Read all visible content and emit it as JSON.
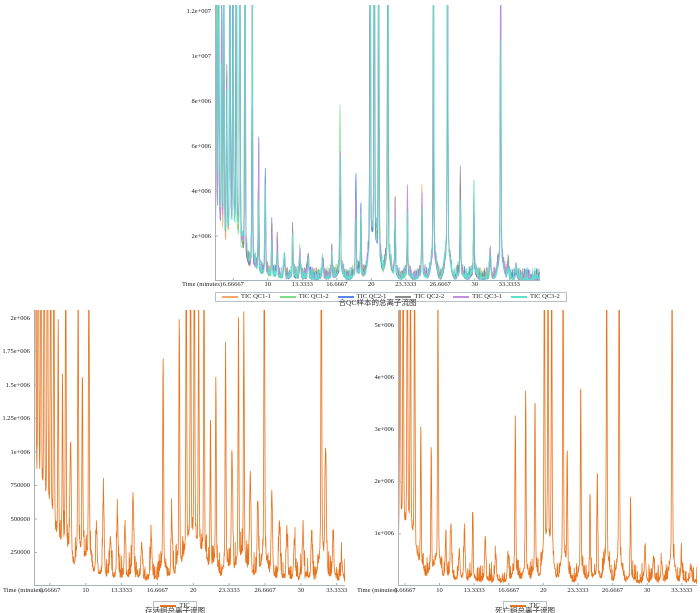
{
  "figure": {
    "background": "#ffffff",
    "description": "Three GC-MS total ion chromatogram (TIC) panels"
  },
  "chart_data": [
    {
      "id": "pooled-qc-tic",
      "type": "line",
      "title": "合QC样本的总离子流图",
      "x_axis_label": "Time (minutes)",
      "x_ticks": [
        "6.66667",
        "10",
        "13.3333",
        "16.6667",
        "20",
        "23.3333",
        "26.6667",
        "30",
        "33.3333"
      ],
      "x_tick_values": [
        6.66667,
        10,
        13.3333,
        16.6667,
        20,
        23.3333,
        26.6667,
        30,
        33.3333
      ],
      "y_ticks": [
        {
          "label": "2e+006",
          "value": 2000000
        },
        {
          "label": "4e+006",
          "value": 4000000
        },
        {
          "label": "6e+006",
          "value": 6000000
        },
        {
          "label": "8e+006",
          "value": 8000000
        },
        {
          "label": "1e+007",
          "value": 10000000
        },
        {
          "label": "1.2e+007",
          "value": 12000000
        }
      ],
      "xlim": [
        4.9,
        36.3
      ],
      "ylim": [
        0,
        12270000
      ],
      "grid": false,
      "legend_position": "bottom",
      "axis_color": "#a9b2bb",
      "series": [
        {
          "name": "TIC QC1-1",
          "color": "#f2a96c"
        },
        {
          "name": "TIC QC1-2",
          "color": "#7ce087"
        },
        {
          "name": "TIC QC2-1",
          "color": "#5c86e8"
        },
        {
          "name": "TIC QC2-2",
          "color": "#8b8b8b"
        },
        {
          "name": "TIC QC3-1",
          "color": "#c38fe3"
        },
        {
          "name": "TIC QC3-2",
          "color": "#5fdfcc"
        }
      ],
      "peaks": [
        [
          5.05,
          14000000
        ],
        [
          5.25,
          13200000
        ],
        [
          5.55,
          9000000
        ],
        [
          5.75,
          11800000
        ],
        [
          6.05,
          6500000
        ],
        [
          6.35,
          14500000
        ],
        [
          6.65,
          15000000
        ],
        [
          6.95,
          12500000
        ],
        [
          7.3,
          15000000
        ],
        [
          7.8,
          13500000
        ],
        [
          8.5,
          9800000
        ],
        [
          9.1,
          4500000
        ],
        [
          9.75,
          4400000
        ],
        [
          10.4,
          1800000
        ],
        [
          10.9,
          1400000
        ],
        [
          11.6,
          900000
        ],
        [
          12.4,
          1600000
        ],
        [
          13.1,
          900000
        ],
        [
          13.9,
          800000
        ],
        [
          15.3,
          700000
        ],
        [
          16.2,
          1100000
        ],
        [
          17.0,
          5600000
        ],
        [
          18.5,
          3500000
        ],
        [
          19.0,
          2900000
        ],
        [
          19.9,
          15000000
        ],
        [
          20.3,
          14500000
        ],
        [
          20.7,
          13000000
        ],
        [
          21.6,
          12200000
        ],
        [
          22.3,
          2400000
        ],
        [
          23.5,
          3100000
        ],
        [
          24.9,
          3700000
        ],
        [
          26.0,
          13500000
        ],
        [
          27.35,
          14500000
        ],
        [
          28.6,
          4000000
        ],
        [
          29.9,
          3300000
        ],
        [
          31.5,
          900000
        ],
        [
          32.5,
          12500000
        ],
        [
          33.2,
          600000
        ],
        [
          34.0,
          300000
        ]
      ],
      "clip_note": "peaks taller than the ylim max run off the top of the plot"
    },
    {
      "id": "survival-group-tic",
      "type": "line",
      "title": "存活组总离子流图",
      "x_axis_label": "Time (minutes)",
      "x_ticks": [
        "6.66667",
        "10",
        "13.3333",
        "16.6667",
        "20",
        "23.3333",
        "26.6667",
        "30",
        "33.3333"
      ],
      "x_tick_values": [
        6.66667,
        10,
        13.3333,
        16.6667,
        20,
        23.3333,
        26.6667,
        30,
        33.3333
      ],
      "y_ticks": [
        {
          "label": "250000",
          "value": 250000
        },
        {
          "label": "500000",
          "value": 500000
        },
        {
          "label": "750000",
          "value": 750000
        },
        {
          "label": "1e+006",
          "value": 1000000
        },
        {
          "label": "1.25e+006",
          "value": 1250000
        },
        {
          "label": "1.5e+006",
          "value": 1500000
        },
        {
          "label": "1.75e+006",
          "value": 1750000
        },
        {
          "label": "2e+006",
          "value": 2000000
        }
      ],
      "xlim": [
        5.2,
        34.1
      ],
      "ylim": [
        0,
        2060000
      ],
      "grid": false,
      "legend_position": "bottom",
      "axis_color": "#a9b2bb",
      "series": [
        {
          "name": "TIC",
          "color": "#e8741e"
        }
      ],
      "peaks": [
        [
          5.35,
          3400000
        ],
        [
          5.6,
          2700000
        ],
        [
          5.85,
          3100000
        ],
        [
          6.15,
          2500000
        ],
        [
          6.45,
          2900000
        ],
        [
          6.75,
          2300000
        ],
        [
          7.05,
          2200000
        ],
        [
          7.45,
          1600000
        ],
        [
          7.85,
          1150000
        ],
        [
          8.15,
          2100000
        ],
        [
          8.6,
          850000
        ],
        [
          9.3,
          1950000
        ],
        [
          9.7,
          1350000
        ],
        [
          10.3,
          2100000
        ],
        [
          11.0,
          320000
        ],
        [
          11.65,
          520000
        ],
        [
          12.3,
          280000
        ],
        [
          12.95,
          420000
        ],
        [
          13.65,
          330000
        ],
        [
          14.4,
          580000
        ],
        [
          15.2,
          240000
        ],
        [
          16.1,
          280000
        ],
        [
          17.2,
          1520000
        ],
        [
          18.0,
          420000
        ],
        [
          18.7,
          1750000
        ],
        [
          19.35,
          2300000
        ],
        [
          19.75,
          2500000
        ],
        [
          20.1,
          2400000
        ],
        [
          20.5,
          1850000
        ],
        [
          21.0,
          2300000
        ],
        [
          21.6,
          1050000
        ],
        [
          22.1,
          1320000
        ],
        [
          23.0,
          1520000
        ],
        [
          23.6,
          850000
        ],
        [
          24.2,
          1680000
        ],
        [
          24.7,
          1820000
        ],
        [
          25.3,
          720000
        ],
        [
          26.0,
          500000
        ],
        [
          26.6,
          2400000
        ],
        [
          27.3,
          580000
        ],
        [
          28.0,
          400000
        ],
        [
          28.7,
          330000
        ],
        [
          29.4,
          280000
        ],
        [
          30.2,
          330000
        ],
        [
          31.0,
          280000
        ],
        [
          31.9,
          2400000
        ],
        [
          32.3,
          850000
        ],
        [
          33.0,
          280000
        ],
        [
          33.8,
          140000
        ]
      ],
      "clip_note": "peaks taller than the ylim max run off the top of the plot"
    },
    {
      "id": "death-group-tic",
      "type": "line",
      "title": "死亡组总离子流图",
      "x_axis_label": "Time (minutes)",
      "x_ticks": [
        "6.66667",
        "10",
        "13.3333",
        "16.6667",
        "20",
        "23.3333",
        "26.6667",
        "30",
        "33.3333"
      ],
      "x_tick_values": [
        6.66667,
        10,
        13.3333,
        16.6667,
        20,
        23.3333,
        26.6667,
        30,
        33.3333
      ],
      "y_ticks": [
        {
          "label": "1e+006",
          "value": 1000000
        },
        {
          "label": "2e+006",
          "value": 2000000
        },
        {
          "label": "3e+006",
          "value": 3000000
        },
        {
          "label": "4e+006",
          "value": 4000000
        },
        {
          "label": "5e+006",
          "value": 5000000
        }
      ],
      "xlim": [
        6.0,
        34.8
      ],
      "ylim": [
        0,
        5300000
      ],
      "grid": false,
      "legend_position": "bottom",
      "axis_color": "#a9b2bb",
      "series": [
        {
          "name": "TIC",
          "color": "#e8741e"
        }
      ],
      "peaks": [
        [
          6.2,
          7000000
        ],
        [
          6.5,
          6000000
        ],
        [
          6.9,
          6500000
        ],
        [
          7.2,
          5600000
        ],
        [
          7.6,
          5800000
        ],
        [
          8.2,
          2600000
        ],
        [
          9.2,
          2200000
        ],
        [
          9.85,
          5100000
        ],
        [
          10.6,
          600000
        ],
        [
          11.1,
          950000
        ],
        [
          11.9,
          500000
        ],
        [
          12.4,
          750000
        ],
        [
          13.2,
          1200000
        ],
        [
          14.4,
          700000
        ],
        [
          15.4,
          450000
        ],
        [
          16.6,
          500000
        ],
        [
          17.3,
          2900000
        ],
        [
          18.3,
          3300000
        ],
        [
          19.2,
          3100000
        ],
        [
          20.1,
          6200000
        ],
        [
          20.45,
          5800000
        ],
        [
          20.8,
          5500000
        ],
        [
          21.9,
          5600000
        ],
        [
          22.3,
          2200000
        ],
        [
          23.6,
          3400000
        ],
        [
          24.5,
          1500000
        ],
        [
          25.2,
          1900000
        ],
        [
          26.1,
          5700000
        ],
        [
          27.3,
          5900000
        ],
        [
          28.4,
          1400000
        ],
        [
          29.8,
          550000
        ],
        [
          30.6,
          400000
        ],
        [
          31.4,
          350000
        ],
        [
          32.4,
          5700000
        ],
        [
          33.3,
          400000
        ],
        [
          34.2,
          250000
        ]
      ],
      "clip_note": "peaks taller than the ylim max run off the top of the plot"
    }
  ]
}
